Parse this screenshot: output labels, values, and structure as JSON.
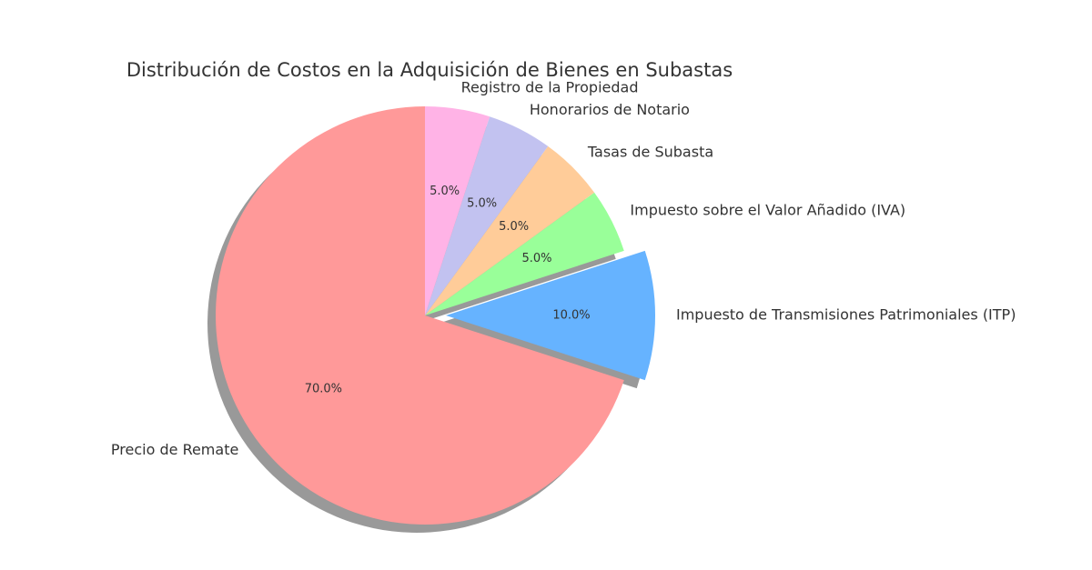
{
  "chart_data": {
    "type": "pie",
    "title": "Distribución de Costos en la Adquisición de Bienes en Subastas",
    "categories": [
      "Precio de Remate",
      "Impuesto de Transmisiones Patrimoniales (ITP)",
      "Impuesto sobre el Valor Añadido (IVA)",
      "Tasas de Subasta",
      "Honorarios de Notario",
      "Registro de la Propiedad"
    ],
    "values": [
      70,
      10,
      5,
      5,
      5,
      5
    ],
    "value_labels": [
      "70.0%",
      "10.0%",
      "5.0%",
      "5.0%",
      "5.0%",
      "5.0%"
    ],
    "colors": [
      "#ff9999",
      "#66b3ff",
      "#99ff99",
      "#ffcc99",
      "#c2c2f0",
      "#ffb3e6"
    ],
    "explode": [
      0,
      0.1,
      0,
      0,
      0,
      0
    ],
    "startangle": 90,
    "shadow": true
  }
}
